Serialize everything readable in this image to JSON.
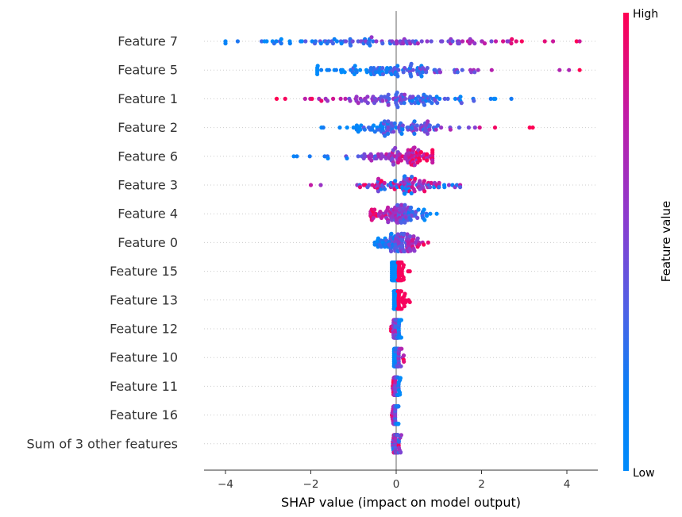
{
  "chart_data": {
    "type": "scatter",
    "variant": "shap-beeswarm-summary",
    "xlabel": "SHAP value (impact on model output)",
    "xlim": [
      -4.5,
      4.75
    ],
    "x_ticks": [
      -4,
      -2,
      0,
      2,
      4
    ],
    "x_tick_labels": [
      "−4",
      "−2",
      "0",
      "2",
      "4"
    ],
    "zero_line": 0,
    "row_gridlines": "dotted",
    "colorbar": {
      "title": "Feature value",
      "high_label": "High",
      "low_label": "Low",
      "low_color": "#008bfb",
      "high_color": "#ff0052",
      "mid_color": "#8b3ccf"
    },
    "features": [
      {
        "name": "Feature 7",
        "min": -4.0,
        "max": 4.3,
        "center": 0.0,
        "spread": 1.8,
        "trend": "high_positive",
        "count": 110
      },
      {
        "name": "Feature 5",
        "min": -1.85,
        "max": 4.3,
        "center": -0.3,
        "spread": 0.8,
        "trend": "high_positive",
        "count": 110
      },
      {
        "name": "Feature 1",
        "min": -2.8,
        "max": 2.7,
        "center": 0.0,
        "spread": 0.75,
        "trend": "high_negative",
        "count": 110
      },
      {
        "name": "Feature 2",
        "min": -1.75,
        "max": 3.2,
        "center": 0.0,
        "spread": 0.6,
        "trend": "high_positive",
        "count": 110
      },
      {
        "name": "Feature 6",
        "min": -2.4,
        "max": 0.85,
        "center": 0.2,
        "spread": 0.45,
        "trend": "high_positive",
        "count": 110
      },
      {
        "name": "Feature 3",
        "min": -2.0,
        "max": 1.5,
        "center": 0.15,
        "spread": 0.5,
        "trend": "mixed",
        "count": 110
      },
      {
        "name": "Feature 4",
        "min": -0.6,
        "max": 0.95,
        "center": 0.0,
        "spread": 0.3,
        "trend": "high_negative",
        "count": 110
      },
      {
        "name": "Feature 0",
        "min": -0.5,
        "max": 0.75,
        "center": 0.05,
        "spread": 0.25,
        "trend": "high_positive",
        "count": 110
      },
      {
        "name": "Feature 15",
        "min": -0.1,
        "max": 0.32,
        "center": 0.0,
        "spread": 0.08,
        "trend": "binary_high_positive",
        "count": 110
      },
      {
        "name": "Feature 13",
        "min": -0.05,
        "max": 0.32,
        "center": 0.0,
        "spread": 0.06,
        "trend": "binary_high_positive",
        "count": 110
      },
      {
        "name": "Feature 12",
        "min": -0.12,
        "max": 0.12,
        "center": 0.0,
        "spread": 0.04,
        "trend": "high_negative",
        "count": 110
      },
      {
        "name": "Feature 10",
        "min": -0.05,
        "max": 0.18,
        "center": 0.0,
        "spread": 0.04,
        "trend": "high_positive",
        "count": 110
      },
      {
        "name": "Feature 11",
        "min": -0.08,
        "max": 0.1,
        "center": 0.0,
        "spread": 0.03,
        "trend": "high_negative",
        "count": 110
      },
      {
        "name": "Feature 16",
        "min": -0.1,
        "max": 0.05,
        "center": 0.0,
        "spread": 0.03,
        "trend": "high_negative",
        "count": 110
      },
      {
        "name": "Sum of 3 other features",
        "min": -0.08,
        "max": 0.12,
        "center": 0.0,
        "spread": 0.03,
        "trend": "mixed",
        "count": 110
      }
    ]
  }
}
